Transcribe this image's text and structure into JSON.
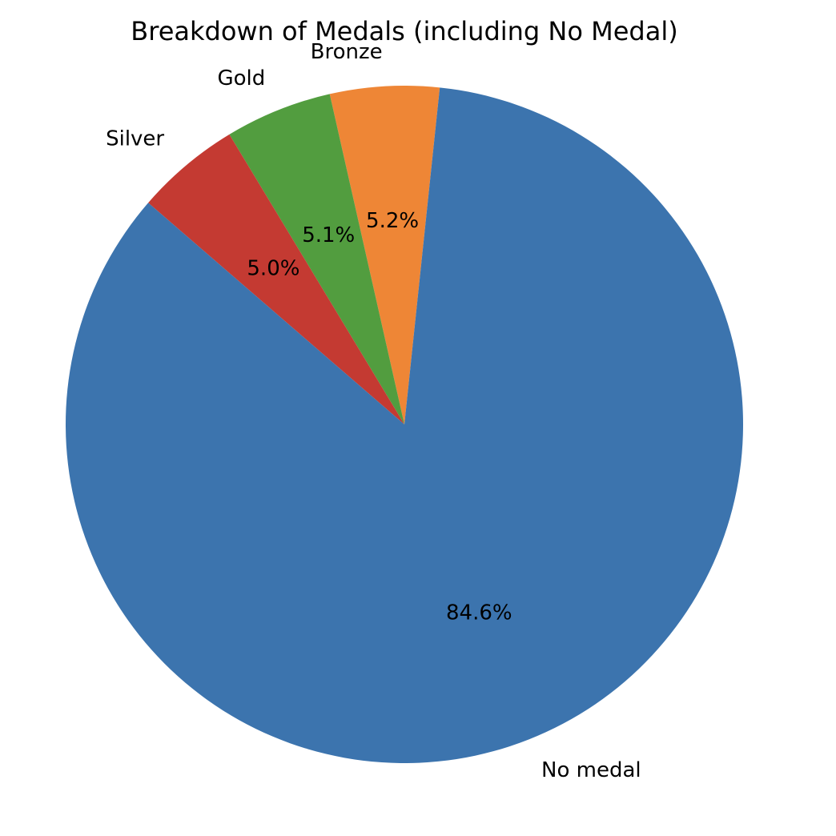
{
  "chart_data": {
    "type": "pie",
    "title": "Breakdown of Medals (including No Medal)",
    "start_angle_deg": 84,
    "direction": "counterclockwise",
    "slices": [
      {
        "label": "Bronze",
        "value": 5.2,
        "pct_label": "5.2%",
        "color": "#ee8636"
      },
      {
        "label": "Gold",
        "value": 5.1,
        "pct_label": "5.1%",
        "color": "#529d3f"
      },
      {
        "label": "Silver",
        "value": 5.0,
        "pct_label": "5.0%",
        "color": "#c43a32"
      },
      {
        "label": "No medal",
        "value": 84.6,
        "pct_label": "84.6%",
        "color": "#3c74ae"
      }
    ]
  }
}
